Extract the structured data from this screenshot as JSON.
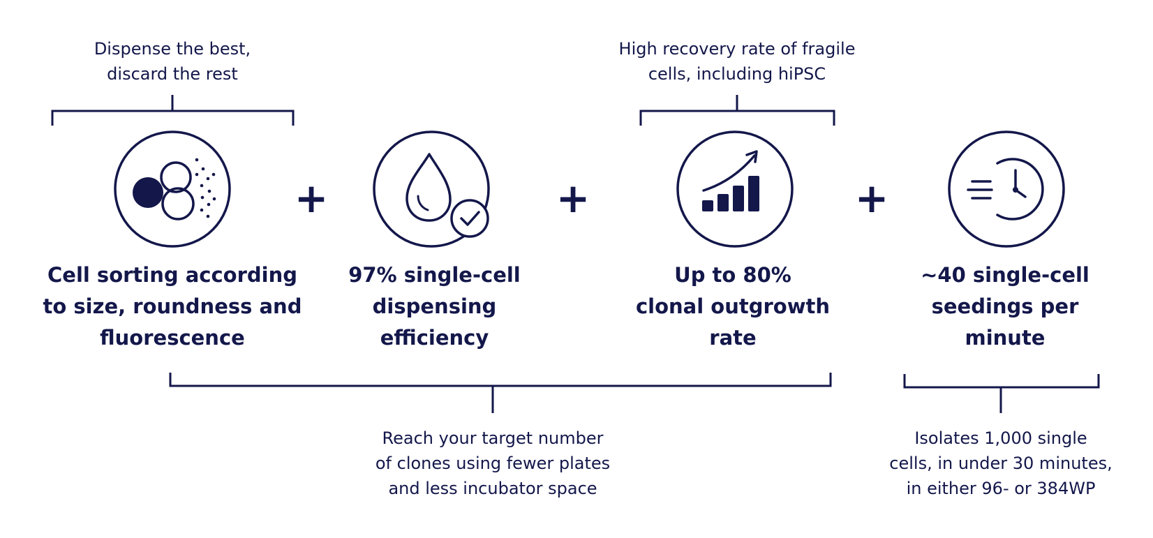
{
  "top_notes": {
    "left": "Dispense the best,\ndiscard the rest",
    "right": "High recovery rate of fragile\ncells, including hiPSC"
  },
  "features": [
    {
      "label": "Cell sorting according\nto size, roundness and\nfluorescence",
      "icon": "cell-sorting-icon"
    },
    {
      "label": "97% single-cell\ndispensing\nefficiency",
      "icon": "droplet-check-icon"
    },
    {
      "label": "Up to 80%\nclonal outgrowth\nrate",
      "icon": "growth-chart-icon"
    },
    {
      "label": "~40 single-cell\nseedings per\nminute",
      "icon": "fast-clock-icon"
    }
  ],
  "plus_sign": "+",
  "bottom_notes": {
    "left": "Reach your target number\nof clones using fewer plates\nand less incubator space",
    "right": "Isolates 1,000 single\ncells, in under 30 minutes,\nin either 96- or 384WP"
  },
  "colors": {
    "primary": "#13174a",
    "background": "#ffffff"
  }
}
